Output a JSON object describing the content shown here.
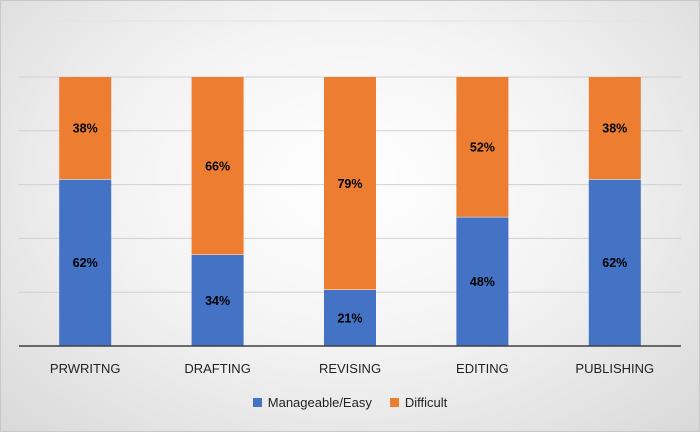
{
  "chart_data": {
    "type": "bar",
    "stacked": true,
    "title": "",
    "xlabel": "",
    "ylabel": "",
    "ylim": [
      0,
      100
    ],
    "grid": true,
    "legend_position": "bottom",
    "categories": [
      "PRWRITNG",
      "DRAFTING",
      "REVISING",
      "EDITING",
      "PUBLISHING"
    ],
    "series": [
      {
        "name": "Manageable/Easy",
        "color": "#4472c4",
        "values": [
          62,
          34,
          21,
          48,
          62
        ],
        "labels": [
          "62%",
          "34%",
          "21%",
          "48%",
          "62%"
        ]
      },
      {
        "name": "Difficult",
        "color": "#ed7d31",
        "values": [
          38,
          66,
          79,
          52,
          38
        ],
        "labels": [
          "38%",
          "66%",
          "79%",
          "52%",
          "38%"
        ]
      }
    ]
  }
}
